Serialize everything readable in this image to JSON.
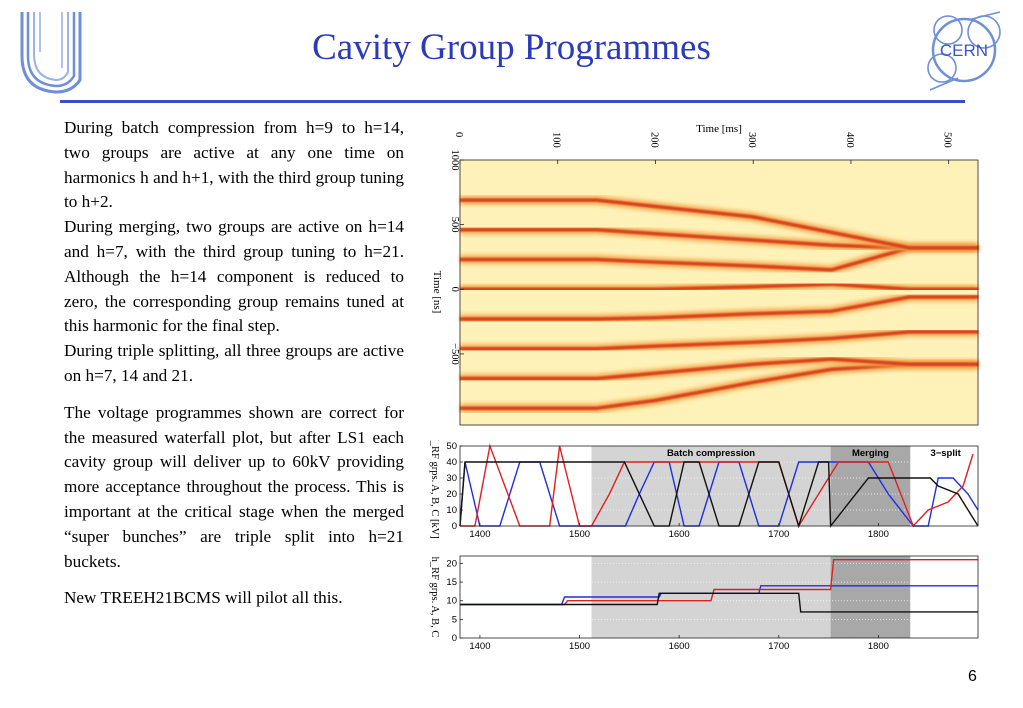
{
  "header": {
    "title": "Cavity Group Programmes"
  },
  "text": {
    "p1": "During batch compression from h=9 to h=14, two groups are active at any one time on harmonics h and h+1, with the third group tuning to h+2.",
    "p2": "During merging, two groups are active on h=14 and h=7, with the third group tuning to h=21.  Although the h=14 component is reduced to zero, the corresponding group remains tuned at this harmonic for the final step.",
    "p3": "During triple splitting, all three groups are active on h=7, 14 and 21.",
    "p4": "The voltage programmes shown are correct for the measured waterfall plot, but after LS1 each cavity group will deliver up to 60kV providing more acceptance throughout the process. This is important at the critical stage when the merged “super bunches” are triple split into h=21 buckets.",
    "p5": "New TREEH21BCMS will pilot all this."
  },
  "footer": {
    "page_number": "6"
  },
  "logos": {
    "left": "university-logo",
    "right": "cern-logo",
    "right_text": "CERN"
  },
  "colors": {
    "title": "#2b3bb8",
    "rule": "#3a4fc6",
    "series_a": "#1f2fe0",
    "series_b": "#e02020",
    "series_c": "#111111"
  },
  "chart_data": [
    {
      "type": "heatmap",
      "title": "",
      "xlabel": "Time [ms]",
      "ylabel": "Time [ns]",
      "xlim": [
        0,
        530
      ],
      "ylim": [
        1000,
        -1050
      ],
      "x_ticks": [
        "0",
        "100",
        "200",
        "300",
        "400",
        "500"
      ],
      "y_ticks": [
        "−500",
        "0",
        "500",
        "1000"
      ],
      "x_tick_values": [
        0,
        100,
        200,
        300,
        400,
        500
      ],
      "y_tick_values": [
        -500,
        0,
        500,
        1000
      ],
      "bunch_traces": {
        "x": [
          0,
          140,
          200,
          300,
          380,
          460,
          530
        ],
        "y": [
          [
            -920,
            -920,
            -860,
            -720,
            -620,
            -580,
            -580
          ],
          [
            -690,
            -690,
            -650,
            -580,
            -540,
            -580,
            -580
          ],
          [
            -460,
            -460,
            -440,
            -410,
            -380,
            -330,
            -330
          ],
          [
            -230,
            -230,
            -220,
            -190,
            -170,
            -60,
            -60
          ],
          [
            0,
            0,
            0,
            20,
            40,
            0,
            0
          ],
          [
            230,
            230,
            210,
            180,
            150,
            320,
            320
          ],
          [
            460,
            460,
            430,
            380,
            340,
            320,
            320
          ],
          [
            690,
            690,
            640,
            560,
            440,
            320,
            320
          ]
        ]
      }
    },
    {
      "type": "line",
      "xlabel": "",
      "ylabel": "V_RF grps. A, B, C [kV]",
      "xlim": [
        1380,
        1900
      ],
      "ylim": [
        0,
        50
      ],
      "x_ticks": [
        "1400",
        "1500",
        "1600",
        "1700",
        "1800"
      ],
      "y_ticks": [
        "0",
        "10",
        "20",
        "30",
        "40",
        "50"
      ],
      "regions": [
        {
          "label": "Batch compression",
          "from": 1512,
          "to": 1752
        },
        {
          "label": "Merging",
          "from": 1752,
          "to": 1832
        },
        {
          "label": "3−split",
          "from": 1835,
          "to": 1900
        }
      ],
      "series": [
        {
          "name": "A",
          "color": "#1f2fe0",
          "x": [
            1380,
            1385,
            1400,
            1420,
            1440,
            1460,
            1480,
            1500,
            1512,
            1530,
            1546,
            1560,
            1575,
            1590,
            1605,
            1620,
            1640,
            1660,
            1680,
            1700,
            1720,
            1740,
            1760,
            1790,
            1810,
            1835,
            1850,
            1860,
            1875,
            1890,
            1900
          ],
          "y": [
            0,
            40,
            0,
            0,
            40,
            40,
            0,
            0,
            0,
            0,
            0,
            20,
            40,
            40,
            0,
            0,
            40,
            40,
            0,
            0,
            40,
            40,
            40,
            40,
            20,
            0,
            0,
            30,
            30,
            20,
            10
          ]
        },
        {
          "name": "B",
          "color": "#e02020",
          "x": [
            1380,
            1395,
            1410,
            1440,
            1470,
            1480,
            1500,
            1512,
            1530,
            1545,
            1560,
            1575,
            1590,
            1605,
            1620,
            1640,
            1660,
            1680,
            1700,
            1720,
            1740,
            1760,
            1790,
            1810,
            1835,
            1850,
            1870,
            1885,
            1895
          ],
          "y": [
            0,
            0,
            50,
            0,
            0,
            50,
            0,
            0,
            20,
            40,
            40,
            40,
            40,
            40,
            40,
            40,
            40,
            40,
            40,
            0,
            20,
            40,
            40,
            40,
            0,
            10,
            15,
            25,
            45
          ]
        },
        {
          "name": "C",
          "color": "#111111",
          "x": [
            1380,
            1385,
            1512,
            1545,
            1575,
            1590,
            1605,
            1620,
            1640,
            1660,
            1680,
            1700,
            1720,
            1740,
            1750,
            1752,
            1790,
            1810,
            1830,
            1852,
            1860,
            1880,
            1900
          ],
          "y": [
            0,
            40,
            40,
            40,
            0,
            0,
            40,
            40,
            0,
            0,
            40,
            40,
            0,
            40,
            40,
            0,
            30,
            30,
            30,
            30,
            25,
            20,
            0
          ]
        }
      ]
    },
    {
      "type": "line",
      "xlabel": "",
      "ylabel": "h_RF grps. A, B, C",
      "xlim": [
        1380,
        1900
      ],
      "ylim": [
        0,
        22
      ],
      "x_ticks": [
        "1400",
        "1500",
        "1600",
        "1700",
        "1800"
      ],
      "y_ticks": [
        "0",
        "5",
        "10",
        "15",
        "20"
      ],
      "series": [
        {
          "name": "A",
          "color": "#1f2fe0",
          "x": [
            1380,
            1482,
            1485,
            1580,
            1582,
            1680,
            1682,
            1900
          ],
          "y": [
            9,
            9,
            11,
            11,
            12,
            12,
            14,
            14
          ]
        },
        {
          "name": "B",
          "color": "#e02020",
          "x": [
            1380,
            1485,
            1488,
            1632,
            1635,
            1752,
            1755,
            1900
          ],
          "y": [
            9,
            9,
            10,
            10,
            13,
            13,
            21,
            21
          ]
        },
        {
          "name": "C",
          "color": "#111111",
          "x": [
            1380,
            1578,
            1580,
            1720,
            1722,
            1900
          ],
          "y": [
            9,
            9,
            12,
            12,
            7,
            7
          ]
        }
      ]
    }
  ]
}
